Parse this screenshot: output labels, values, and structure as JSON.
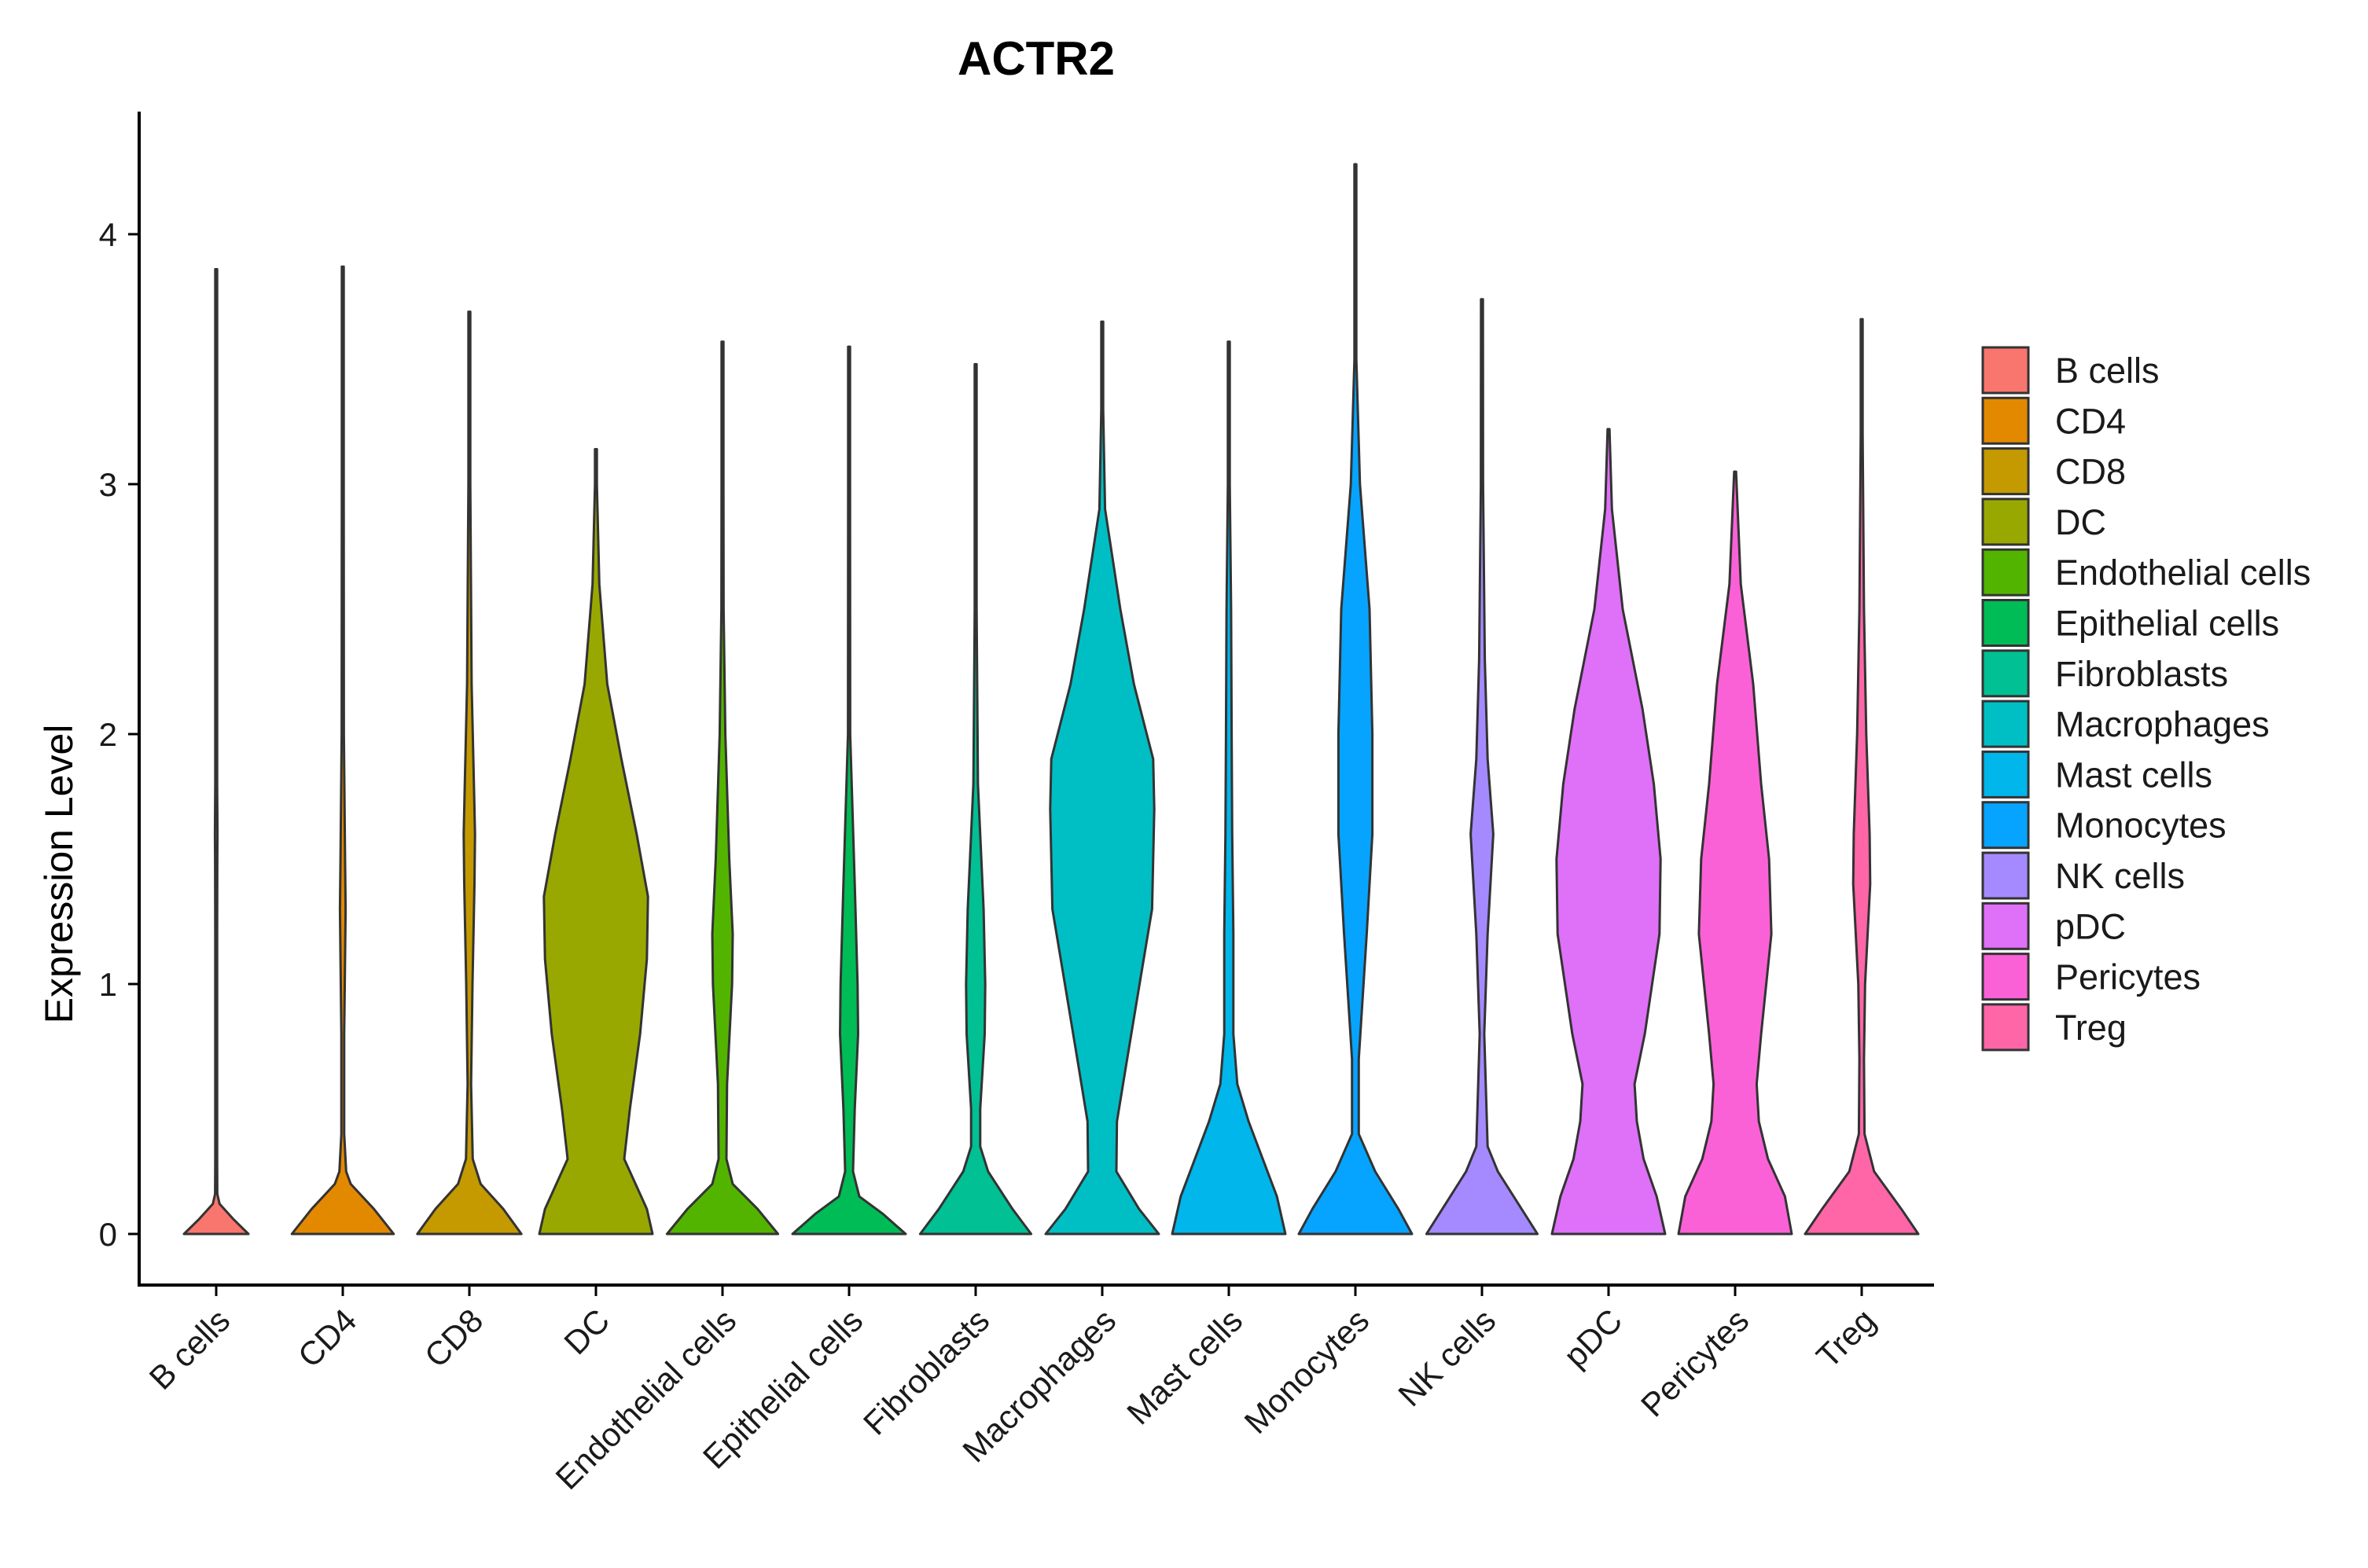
{
  "chart_data": {
    "type": "violin",
    "title": "ACTR2",
    "xlabel": "",
    "ylabel": "Expression Level",
    "ylim": [
      -0.2,
      4.5
    ],
    "yticks": [
      0,
      1,
      2,
      3,
      4
    ],
    "grid": false,
    "legend_position": "right",
    "categories": [
      "B cells",
      "CD4",
      "CD8",
      "DC",
      "Endothelial cells",
      "Epithelial cells",
      "Fibroblasts",
      "Macrophages",
      "Mast cells",
      "Monocytes",
      "NK cells",
      "pDC",
      "Pericytes",
      "Treg"
    ],
    "colors": [
      "#F8766D",
      "#E38900",
      "#C49A00",
      "#99A800",
      "#53B400",
      "#00BC56",
      "#00C094",
      "#00BFC4",
      "#00B6EB",
      "#06A4FF",
      "#A58AFF",
      "#DF70F8",
      "#FB61D7",
      "#FF66A8"
    ],
    "max_values": [
      3.86,
      3.87,
      3.69,
      3.14,
      3.57,
      3.55,
      3.48,
      3.65,
      3.57,
      4.28,
      3.74,
      3.22,
      3.05,
      3.66
    ],
    "density_profiles": [
      [
        [
          0,
          0.57
        ],
        [
          0.06,
          0.3
        ],
        [
          0.12,
          0.06
        ],
        [
          0.16,
          0.02
        ],
        [
          0.3,
          0.012
        ],
        [
          0.8,
          0.01
        ],
        [
          1.2,
          0.012
        ],
        [
          1.5,
          0.02
        ],
        [
          1.6,
          0.022
        ],
        [
          1.8,
          0.015
        ],
        [
          2.5,
          0.006
        ],
        [
          3.86,
          0.004
        ]
      ],
      [
        [
          0,
          0.9
        ],
        [
          0.1,
          0.55
        ],
        [
          0.2,
          0.14
        ],
        [
          0.25,
          0.06
        ],
        [
          0.4,
          0.025
        ],
        [
          0.8,
          0.025
        ],
        [
          1.1,
          0.04
        ],
        [
          1.3,
          0.05
        ],
        [
          1.5,
          0.04
        ],
        [
          2.0,
          0.02
        ],
        [
          3.0,
          0.008
        ],
        [
          3.87,
          0.004
        ]
      ],
      [
        [
          0,
          0.92
        ],
        [
          0.1,
          0.6
        ],
        [
          0.2,
          0.2
        ],
        [
          0.3,
          0.06
        ],
        [
          0.6,
          0.03
        ],
        [
          1.0,
          0.055
        ],
        [
          1.4,
          0.09
        ],
        [
          1.6,
          0.1
        ],
        [
          1.8,
          0.08
        ],
        [
          2.2,
          0.04
        ],
        [
          3.0,
          0.012
        ],
        [
          3.69,
          0.004
        ]
      ],
      [
        [
          0,
          1
        ],
        [
          0.1,
          0.9
        ],
        [
          0.3,
          0.5
        ],
        [
          0.5,
          0.6
        ],
        [
          0.8,
          0.78
        ],
        [
          1.1,
          0.9
        ],
        [
          1.35,
          0.92
        ],
        [
          1.6,
          0.72
        ],
        [
          1.9,
          0.45
        ],
        [
          2.2,
          0.2
        ],
        [
          2.6,
          0.06
        ],
        [
          3.0,
          0.012
        ],
        [
          3.14,
          0.004
        ]
      ],
      [
        [
          0,
          0.98
        ],
        [
          0.1,
          0.62
        ],
        [
          0.2,
          0.18
        ],
        [
          0.3,
          0.07
        ],
        [
          0.6,
          0.08
        ],
        [
          1.0,
          0.17
        ],
        [
          1.2,
          0.18
        ],
        [
          1.5,
          0.12
        ],
        [
          2.0,
          0.05
        ],
        [
          2.5,
          0.02
        ],
        [
          3.0,
          0.008
        ],
        [
          3.57,
          0.004
        ]
      ],
      [
        [
          0,
          1
        ],
        [
          0.08,
          0.6
        ],
        [
          0.15,
          0.18
        ],
        [
          0.25,
          0.07
        ],
        [
          0.5,
          0.1
        ],
        [
          0.8,
          0.16
        ],
        [
          1.0,
          0.15
        ],
        [
          1.4,
          0.1
        ],
        [
          2.0,
          0.02
        ],
        [
          3.0,
          0.006
        ],
        [
          3.55,
          0.004
        ]
      ],
      [
        [
          0,
          0.98
        ],
        [
          0.1,
          0.65
        ],
        [
          0.25,
          0.22
        ],
        [
          0.35,
          0.08
        ],
        [
          0.5,
          0.08
        ],
        [
          0.8,
          0.16
        ],
        [
          1.0,
          0.17
        ],
        [
          1.3,
          0.14
        ],
        [
          1.8,
          0.04
        ],
        [
          2.5,
          0.015
        ],
        [
          3.48,
          0.004
        ]
      ],
      [
        [
          0,
          1
        ],
        [
          0.1,
          0.65
        ],
        [
          0.25,
          0.25
        ],
        [
          0.45,
          0.26
        ],
        [
          0.7,
          0.44
        ],
        [
          1.0,
          0.66
        ],
        [
          1.3,
          0.88
        ],
        [
          1.7,
          0.92
        ],
        [
          1.9,
          0.9
        ],
        [
          2.2,
          0.56
        ],
        [
          2.5,
          0.32
        ],
        [
          2.9,
          0.05
        ],
        [
          3.3,
          0.015
        ],
        [
          3.65,
          0.004
        ]
      ],
      [
        [
          0,
          1
        ],
        [
          0.15,
          0.85
        ],
        [
          0.3,
          0.6
        ],
        [
          0.45,
          0.35
        ],
        [
          0.6,
          0.15
        ],
        [
          0.8,
          0.08
        ],
        [
          1.2,
          0.08
        ],
        [
          1.6,
          0.06
        ],
        [
          2.0,
          0.05
        ],
        [
          2.5,
          0.04
        ],
        [
          3.0,
          0.01
        ],
        [
          3.57,
          0.004
        ]
      ],
      [
        [
          0,
          1
        ],
        [
          0.1,
          0.76
        ],
        [
          0.25,
          0.35
        ],
        [
          0.4,
          0.06
        ],
        [
          0.7,
          0.06
        ],
        [
          1.2,
          0.2
        ],
        [
          1.6,
          0.3
        ],
        [
          2.0,
          0.3
        ],
        [
          2.5,
          0.25
        ],
        [
          3.0,
          0.08
        ],
        [
          3.5,
          0.01
        ],
        [
          4.28,
          0.004
        ]
      ],
      [
        [
          0,
          0.98
        ],
        [
          0.1,
          0.7
        ],
        [
          0.25,
          0.28
        ],
        [
          0.35,
          0.1
        ],
        [
          0.8,
          0.04
        ],
        [
          1.2,
          0.1
        ],
        [
          1.6,
          0.2
        ],
        [
          1.9,
          0.1
        ],
        [
          2.3,
          0.05
        ],
        [
          3.0,
          0.02
        ],
        [
          3.74,
          0.004
        ]
      ],
      [
        [
          0,
          1
        ],
        [
          0.15,
          0.85
        ],
        [
          0.3,
          0.62
        ],
        [
          0.45,
          0.5
        ],
        [
          0.6,
          0.46
        ],
        [
          0.8,
          0.64
        ],
        [
          1.2,
          0.9
        ],
        [
          1.5,
          0.92
        ],
        [
          1.8,
          0.8
        ],
        [
          2.1,
          0.6
        ],
        [
          2.5,
          0.25
        ],
        [
          2.9,
          0.06
        ],
        [
          3.22,
          0.004
        ]
      ],
      [
        [
          0,
          1
        ],
        [
          0.15,
          0.88
        ],
        [
          0.3,
          0.58
        ],
        [
          0.45,
          0.42
        ],
        [
          0.6,
          0.38
        ],
        [
          0.8,
          0.46
        ],
        [
          1.2,
          0.64
        ],
        [
          1.5,
          0.6
        ],
        [
          1.8,
          0.46
        ],
        [
          2.2,
          0.32
        ],
        [
          2.6,
          0.1
        ],
        [
          3.05,
          0.004
        ]
      ],
      [
        [
          0,
          1
        ],
        [
          0.1,
          0.7
        ],
        [
          0.25,
          0.22
        ],
        [
          0.4,
          0.05
        ],
        [
          0.7,
          0.04
        ],
        [
          1.0,
          0.06
        ],
        [
          1.4,
          0.15
        ],
        [
          1.6,
          0.14
        ],
        [
          2.0,
          0.08
        ],
        [
          2.5,
          0.04
        ],
        [
          3.2,
          0.01
        ],
        [
          3.66,
          0.004
        ]
      ]
    ]
  }
}
